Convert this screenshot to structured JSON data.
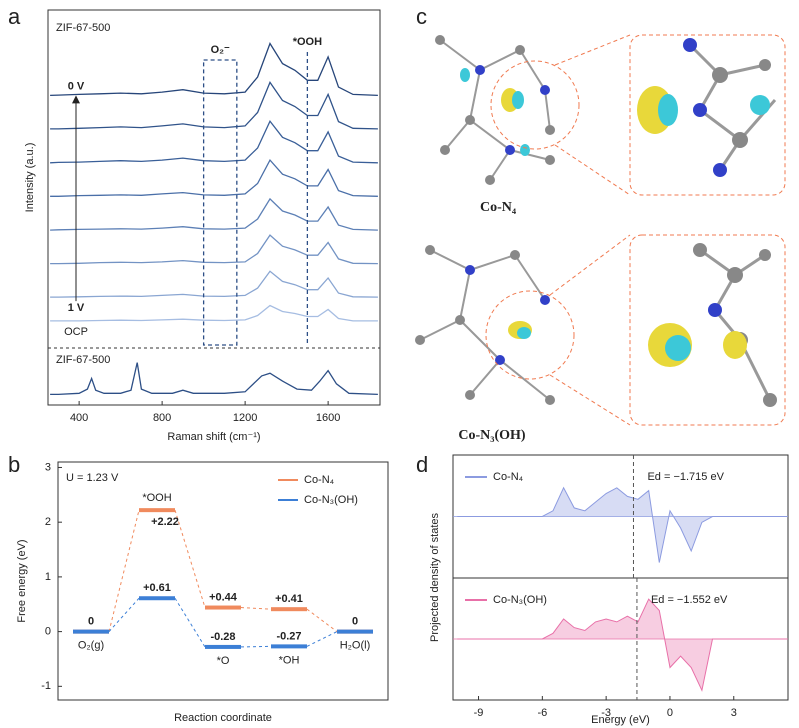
{
  "panels": [
    "a",
    "b",
    "c",
    "d"
  ],
  "chart_data": [
    {
      "type": "line",
      "sample": "ZIF-67-500",
      "xlabel": "Raman shift (cm⁻¹)",
      "ylabel": "Intensity (a.u.)",
      "xlim": [
        250,
        1850
      ],
      "xticks": [
        400,
        800,
        1200,
        1600
      ],
      "ylim": [
        0,
        100
      ],
      "x": [
        260,
        300,
        400,
        500,
        600,
        700,
        800,
        900,
        1000,
        1100,
        1200,
        1260,
        1320,
        1380,
        1440,
        1500,
        1550,
        1600,
        1650,
        1720,
        1840
      ],
      "series": [
        {
          "color": "#27467a",
          "values": [
            74.5,
            74.6,
            74.8,
            75,
            75.2,
            75,
            75.5,
            76.2,
            75.2,
            75,
            75.5,
            80,
            90,
            84,
            82,
            79,
            79,
            86,
            77,
            74.8,
            74.5
          ]
        },
        {
          "color": "#30538a",
          "values": [
            64.5,
            64.5,
            64.7,
            64.9,
            65.1,
            64.9,
            65.4,
            66,
            65.1,
            64.9,
            65.4,
            69.4,
            78.4,
            73,
            71.2,
            68.5,
            68.5,
            74.8,
            66.7,
            64.7,
            64.5
          ]
        },
        {
          "color": "#3a5f98",
          "values": [
            54.4,
            54.5,
            54.6,
            54.8,
            55,
            54.8,
            55.2,
            55.8,
            55,
            54.8,
            55.2,
            58.8,
            66.8,
            62,
            60.4,
            58,
            58,
            63.6,
            56.4,
            54.6,
            54.4
          ]
        },
        {
          "color": "#4a6fa8",
          "values": [
            44.4,
            44.4,
            44.6,
            44.7,
            44.8,
            44.7,
            45.1,
            45.5,
            44.8,
            44.7,
            45.1,
            48.2,
            55.2,
            51,
            49.6,
            47.5,
            47.5,
            52.4,
            46.1,
            44.6,
            44.4
          ]
        },
        {
          "color": "#5d80b6",
          "values": [
            34.3,
            34.4,
            34.5,
            34.6,
            34.7,
            34.6,
            34.9,
            35.3,
            34.7,
            34.6,
            34.9,
            37.6,
            43.6,
            40,
            38.8,
            37,
            37,
            41.2,
            35.8,
            34.5,
            34.3
          ]
        },
        {
          "color": "#7393c4",
          "values": [
            24.3,
            24.3,
            24.4,
            24.6,
            24.7,
            24.6,
            24.8,
            25.2,
            24.7,
            24.6,
            24.8,
            27.3,
            32.8,
            29.5,
            28.4,
            26.8,
            26.8,
            30.6,
            25.7,
            24.4,
            24.3
          ]
        },
        {
          "color": "#8aa6d2",
          "values": [
            14.3,
            14.3,
            14.4,
            14.5,
            14.6,
            14.5,
            14.8,
            15.1,
            14.6,
            14.5,
            14.8,
            17,
            22,
            19,
            18,
            16.5,
            16.5,
            20,
            15.5,
            14.4,
            14.3
          ]
        },
        {
          "color": "#a6bde2",
          "values": [
            7.2,
            7.2,
            7.2,
            7.3,
            7.4,
            7.3,
            7.5,
            7.7,
            7.4,
            7.3,
            7.5,
            8.8,
            11.8,
            10,
            9.4,
            8.5,
            8.5,
            10.6,
            7.9,
            7.2,
            7.2
          ]
        }
      ],
      "potential_labels": [
        "0 V",
        "1 V",
        "OCP"
      ],
      "regions": [
        {
          "label": "O₂⁻",
          "range": [
            1000,
            1160
          ]
        },
        {
          "label": "*OOH",
          "x": 1500
        }
      ],
      "reference": {
        "label": "ZIF-67-500",
        "color": "#2d4f86",
        "ylim": [
          0,
          100
        ],
        "x": [
          260,
          300,
          400,
          440,
          460,
          480,
          520,
          600,
          650,
          680,
          700,
          750,
          850,
          900,
          950,
          1100,
          1200,
          1280,
          1320,
          1380,
          1450,
          1520,
          1560,
          1600,
          1640,
          1700,
          1840
        ],
        "values": [
          20,
          20,
          22,
          30,
          50,
          28,
          22,
          22,
          28,
          80,
          30,
          22,
          22,
          28,
          22,
          22,
          25,
          55,
          60,
          45,
          30,
          28,
          45,
          65,
          40,
          22,
          20
        ]
      }
    },
    {
      "type": "energy",
      "annotation": "U = 1.23 V",
      "xlabel": "Reaction coordinate",
      "ylabel": "Free energy (eV)",
      "categories": [
        "O₂(g)",
        "*OOH",
        "*O",
        "*OH",
        "H₂O(l)"
      ],
      "ylim": [
        -1.25,
        3.1
      ],
      "yticks": [
        -1,
        0,
        1,
        2,
        3
      ],
      "legend": "upper right",
      "series": [
        {
          "name": "Co-N₄",
          "color": "#f08a5d",
          "values": [
            0,
            2.22,
            0.44,
            0.41,
            0
          ],
          "value_labels": [
            null,
            "+2.22",
            "+0.44",
            "+0.41",
            null
          ]
        },
        {
          "name": "Co-N₃(OH)",
          "color": "#3c7fd6",
          "values": [
            0,
            0.61,
            -0.28,
            -0.27,
            0
          ],
          "value_labels": [
            "0",
            "+0.61",
            "-0.28",
            "-0.27",
            "0"
          ]
        }
      ]
    },
    {
      "type": "area",
      "xlabel": "Energy (eV)",
      "ylabel": "Projected density of states",
      "xlim": [
        -10.2,
        5.55
      ],
      "xticks": [
        -9,
        -6,
        -3,
        0,
        3
      ],
      "ylim": [
        -1,
        1
      ],
      "x": [
        -10,
        -9.5,
        -9,
        -8.5,
        -8,
        -7.5,
        -7,
        -6.5,
        -6,
        -5.5,
        -5,
        -4.5,
        -4,
        -3.5,
        -3,
        -2.5,
        -2,
        -1.5,
        -1,
        -0.5,
        0,
        0.5,
        1,
        1.5,
        2,
        2.5,
        3,
        3.5,
        4,
        4.5,
        5,
        5.5
      ],
      "series": [
        {
          "name": "Co-N₄",
          "color": "#8c9be0",
          "d_band": {
            "value": -1.715,
            "label": "Ed = −1.715 eV"
          },
          "values": [
            0,
            0,
            0,
            0,
            0,
            0,
            0,
            0,
            0,
            0.1,
            0.5,
            0.15,
            0.1,
            0.25,
            0.4,
            0.5,
            0.35,
            0.3,
            0.45,
            -0.8,
            0.1,
            -0.2,
            -0.6,
            -0.1,
            0,
            0,
            0,
            0,
            0,
            0,
            0,
            0
          ]
        },
        {
          "name": "Co-N₃(OH)",
          "color": "#e870a8",
          "d_band": {
            "value": -1.552,
            "label": "Ed = −1.552 eV"
          },
          "values": [
            0,
            0,
            0,
            0,
            0,
            0,
            0,
            0,
            0,
            0.1,
            0.35,
            0.2,
            0.15,
            0.3,
            0.35,
            0.3,
            0.4,
            0.3,
            0.7,
            0.5,
            -0.5,
            -0.3,
            -0.5,
            -0.9,
            0,
            0,
            0,
            0,
            0,
            0,
            0,
            0
          ]
        }
      ]
    }
  ],
  "structures": [
    {
      "label": "Co-N₄"
    },
    {
      "label": "Co-N₃(OH)"
    }
  ]
}
